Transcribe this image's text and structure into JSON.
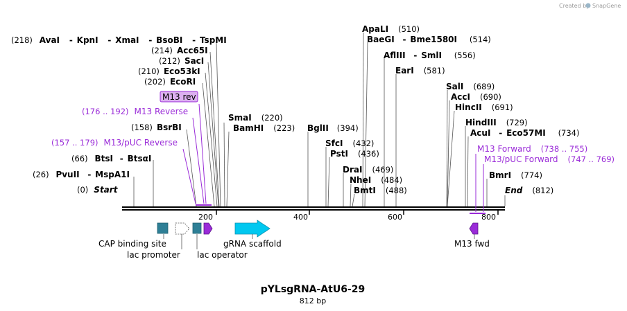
{
  "credit": {
    "created_by": "Created by",
    "brand": "SnapGene"
  },
  "map": {
    "title": "pYLsgRNA-AtU6-29",
    "length_label": "812 bp"
  },
  "scale": {
    "ticks": [
      "200",
      "400",
      "600",
      "800"
    ]
  },
  "sites": {
    "avai_row": {
      "pos": "(218)",
      "a": "AvaI",
      "b": "KpnI",
      "c": "XmaI",
      "d": "BsoBI",
      "e": "TspMI",
      "dash": "-"
    },
    "acc65i": {
      "pos": "(214)",
      "name": "Acc65I"
    },
    "saci": {
      "pos": "(212)",
      "name": "SacI"
    },
    "eco53ki": {
      "pos": "(210)",
      "name": "Eco53kI"
    },
    "ecori": {
      "pos": "(202)",
      "name": "EcoRI"
    },
    "bsrbi": {
      "pos": "(158)",
      "name": "BsrBI"
    },
    "btsi_row": {
      "pos": "(66)",
      "a": "BtsI",
      "b": "BtsαI",
      "dash": "-"
    },
    "pvuii_row": {
      "pos": "(26)",
      "a": "PvuII",
      "b": "MspA1I",
      "dash": "-"
    },
    "start": {
      "pos": "(0)",
      "name": "Start"
    },
    "smai": {
      "pos": "(220)",
      "name": "SmaI"
    },
    "bamhi": {
      "pos": "(223)",
      "name": "BamHI"
    },
    "bglii": {
      "pos": "(394)",
      "name": "BglII"
    },
    "apali": {
      "pos": "(510)",
      "name": "ApaLI"
    },
    "baegi_row": {
      "pos": "(514)",
      "a": "BaeGI",
      "b": "Bme1580I",
      "dash": "-"
    },
    "aflii_row": {
      "pos": "(556)",
      "a": "AflIII",
      "b": "SmlI",
      "dash": "-"
    },
    "eari": {
      "pos": "(581)",
      "name": "EarI"
    },
    "sfci": {
      "pos": "(432)",
      "name": "SfcI"
    },
    "psti": {
      "pos": "(436)",
      "name": "PstI"
    },
    "drai": {
      "pos": "(469)",
      "name": "DraI"
    },
    "nhei": {
      "pos": "(484)",
      "name": "NheI"
    },
    "bmti": {
      "pos": "(488)",
      "name": "BmtI"
    },
    "sali": {
      "pos": "(689)",
      "name": "SalI"
    },
    "acci": {
      "pos": "(690)",
      "name": "AccI"
    },
    "hincii": {
      "pos": "(691)",
      "name": "HincII"
    },
    "hindiii": {
      "pos": "(729)",
      "name": "HindIII"
    },
    "acui_row": {
      "pos": "(734)",
      "a": "AcuI",
      "b": "Eco57MI",
      "dash": "-"
    },
    "bmri": {
      "pos": "(774)",
      "name": "BmrI"
    },
    "end": {
      "pos": "(812)",
      "name": "End"
    }
  },
  "primers": {
    "m13rev_box": "M13 rev",
    "m13_reverse": {
      "name": "M13 Reverse",
      "range": "(176 .. 192)"
    },
    "m13puc_reverse": {
      "name": "M13/pUC Reverse",
      "range": "(157 .. 179)"
    },
    "m13_forward": {
      "name": "M13 Forward",
      "range": "(738 .. 755)"
    },
    "m13puc_forward": {
      "name": "M13/pUC Forward",
      "range": "(747 .. 769)"
    }
  },
  "features": {
    "cap": "CAP binding site",
    "lac_promoter": "lac promoter",
    "lac_operator": "lac operator",
    "grna": "gRNA scaffold",
    "m13fwd": "M13 fwd"
  },
  "colors": {
    "purple": "#9a2bd8",
    "teal": "#2e7f96",
    "cyan": "#00c8f0",
    "primer_box": "#dcb0f0"
  }
}
